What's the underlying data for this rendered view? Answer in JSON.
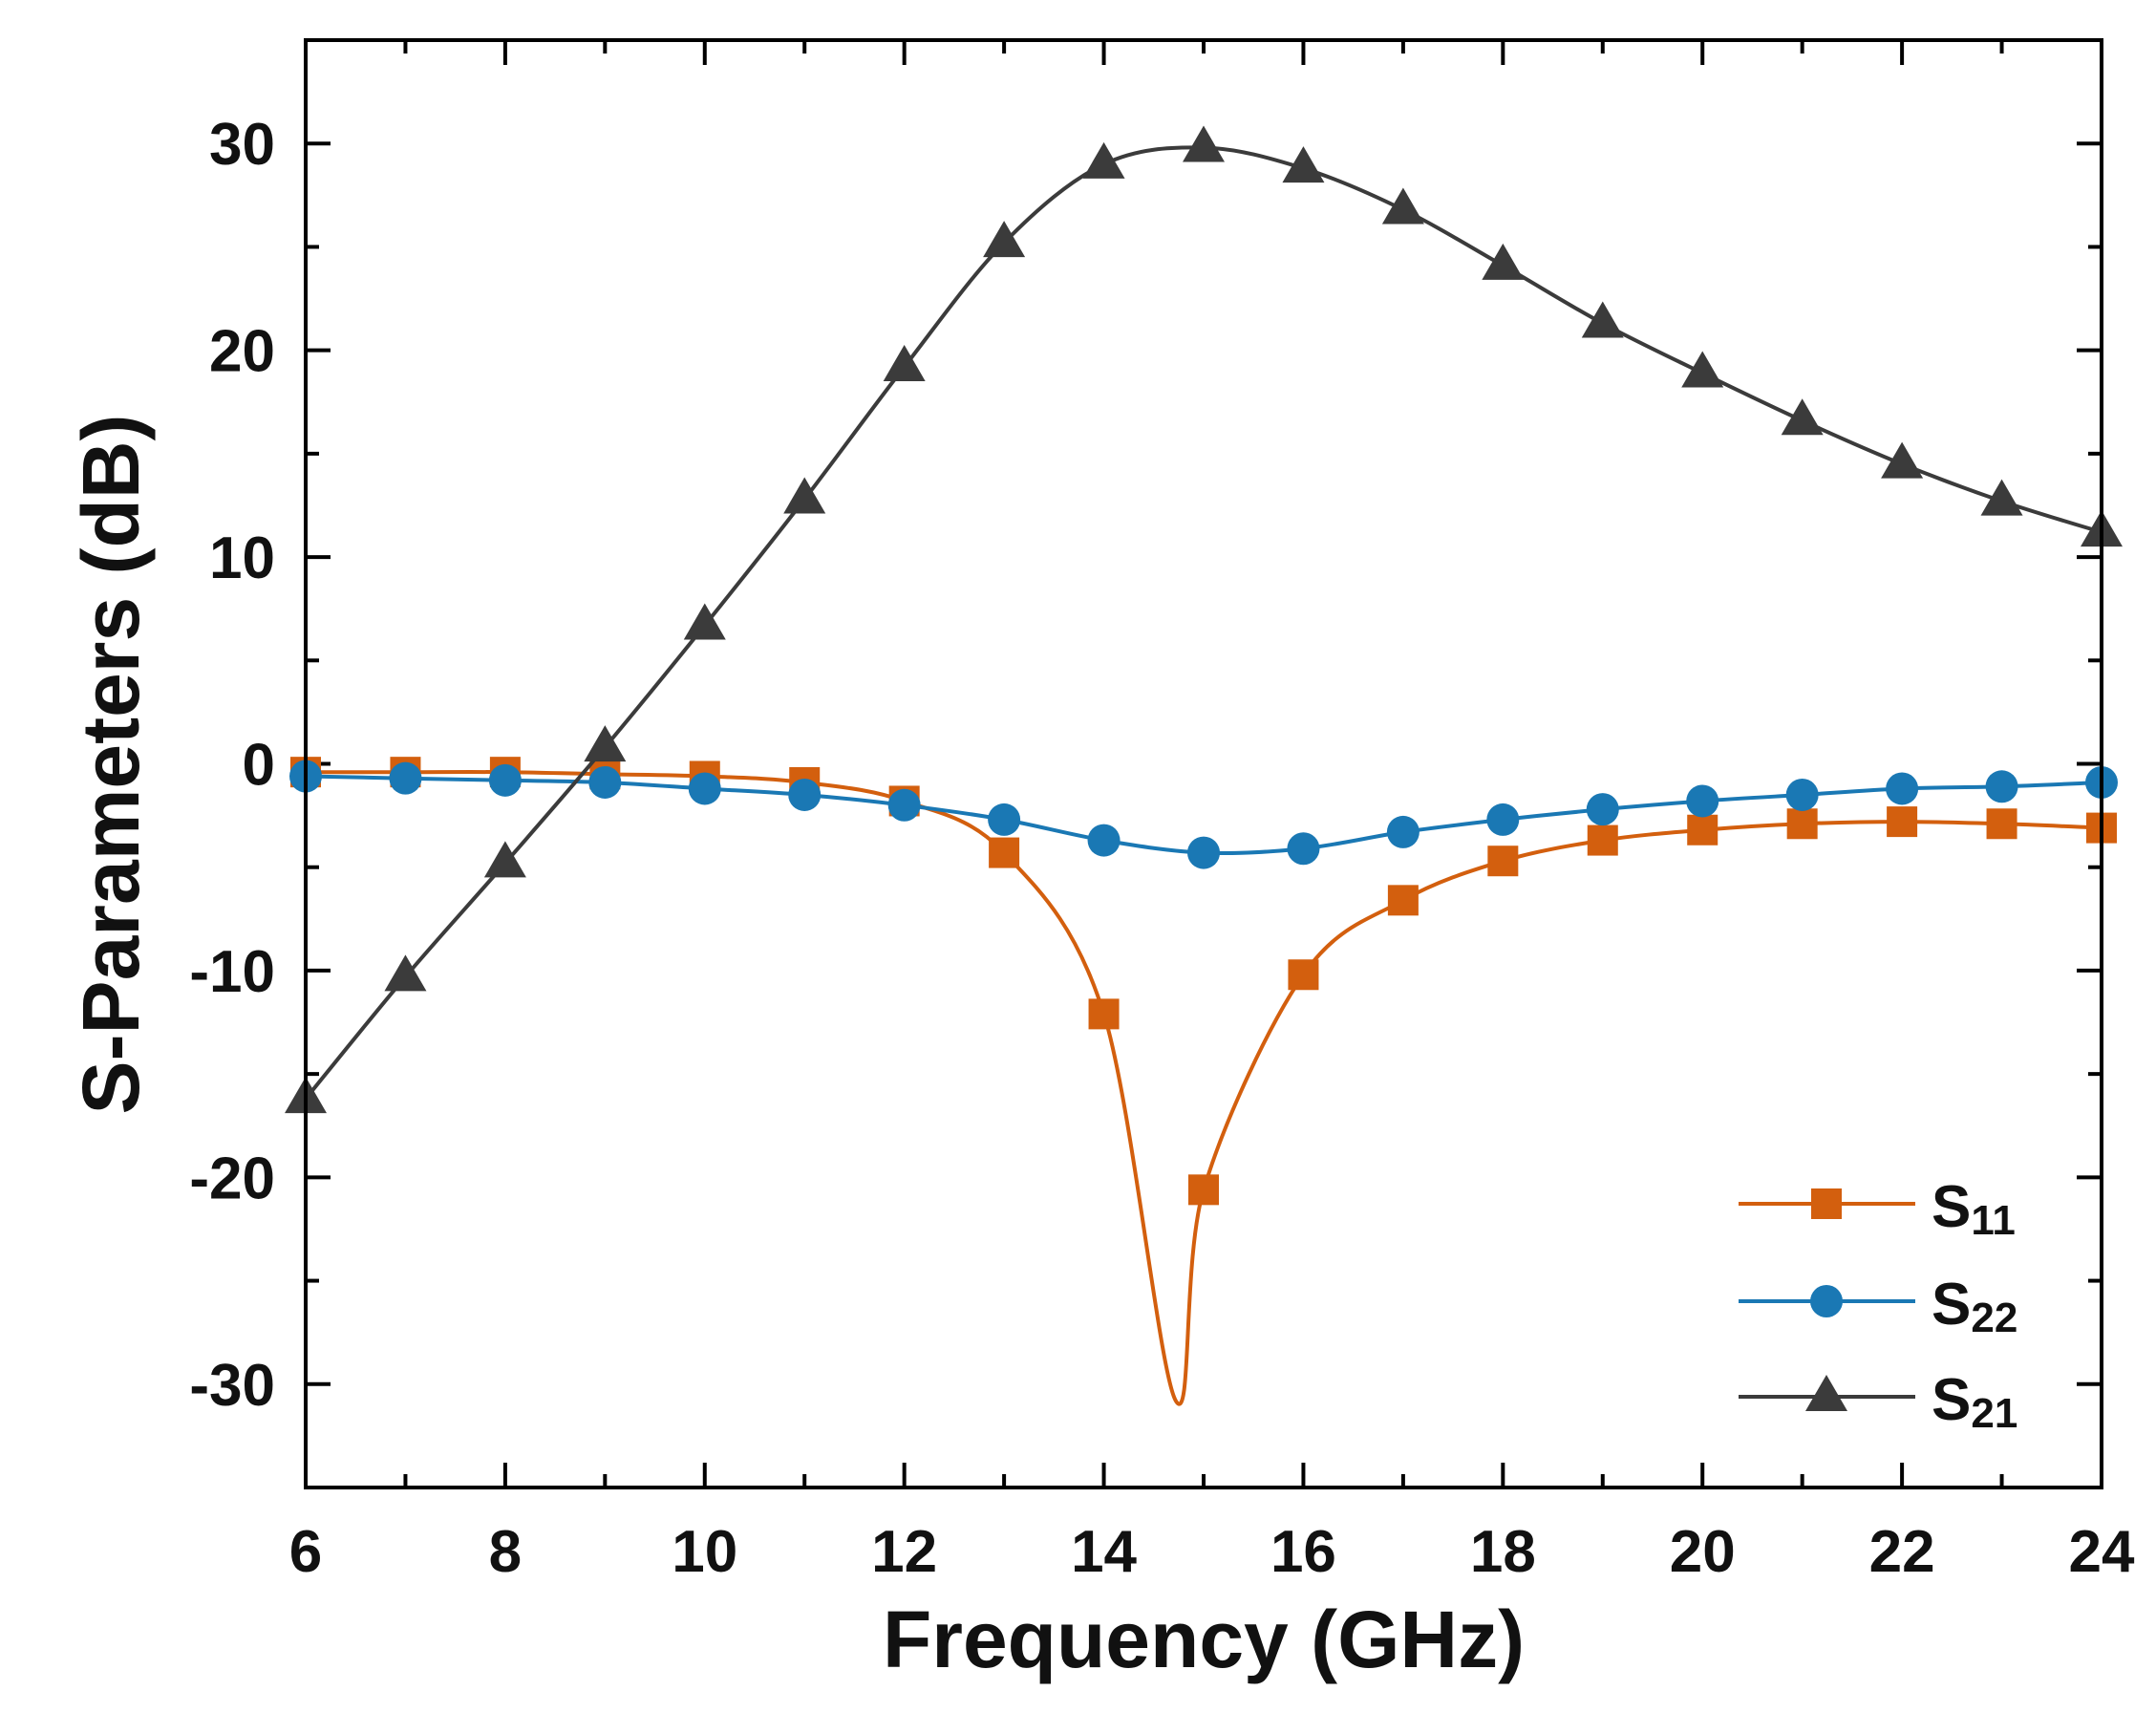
{
  "chart_data": {
    "type": "line",
    "title": "",
    "xlabel": "Frequency (GHz)",
    "ylabel": "S-Parameters (dB)",
    "xlim": [
      6,
      24
    ],
    "ylim": [
      -35,
      35
    ],
    "xticks": [
      "6",
      "8",
      "10",
      "12",
      "14",
      "16",
      "18",
      "20",
      "22",
      "24"
    ],
    "yticks": [
      "30",
      "20",
      "10",
      "0",
      "-10",
      "-20",
      "-30"
    ],
    "grid": false,
    "legend_position": "bottom-right",
    "x": [
      6,
      7,
      8,
      9,
      10,
      11,
      12,
      13,
      14,
      15,
      16,
      17,
      18,
      19,
      20,
      21,
      22,
      23,
      24
    ],
    "series": [
      {
        "name": "S11",
        "label_main": "S",
        "label_sub": "11",
        "color": "#d35f0e",
        "marker": "square",
        "values": [
          -0.4,
          -0.4,
          -0.4,
          -0.5,
          -0.6,
          -0.9,
          -1.8,
          -4.3,
          -12.1,
          -20.6,
          -10.2,
          -6.6,
          -4.7,
          -3.7,
          -3.2,
          -2.9,
          -2.8,
          -2.9,
          -3.1
        ],
        "curve_extra": [
          [
            14.72,
            -30.8
          ]
        ]
      },
      {
        "name": "S22",
        "label_main": "S",
        "label_sub": "22",
        "color": "#1a78b4",
        "marker": "circle",
        "values": [
          -0.6,
          -0.7,
          -0.8,
          -0.9,
          -1.2,
          -1.5,
          -2.0,
          -2.7,
          -3.7,
          -4.3,
          -4.1,
          -3.3,
          -2.7,
          -2.2,
          -1.8,
          -1.5,
          -1.2,
          -1.1,
          -0.9
        ]
      },
      {
        "name": "S21",
        "label_main": "S",
        "label_sub": "21",
        "color": "#3b3b3b",
        "marker": "triangle",
        "values": [
          -16.2,
          -10.3,
          -4.8,
          0.8,
          6.7,
          12.8,
          19.2,
          25.2,
          29.0,
          29.8,
          28.8,
          26.8,
          24.1,
          21.3,
          18.9,
          16.6,
          14.5,
          12.7,
          11.2
        ]
      }
    ]
  }
}
